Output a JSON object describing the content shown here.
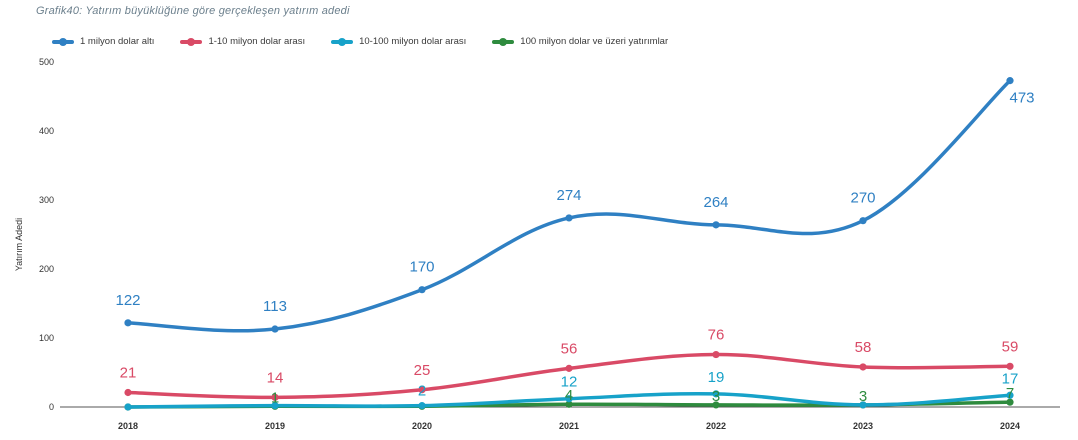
{
  "chart_data": {
    "type": "line",
    "title": "Grafik40: Yatırım büyüklüğüne göre gerçekleşen yatırım adedi",
    "xlabel": "",
    "ylabel": "Yatırım Adedi",
    "x": [
      "2018",
      "2019",
      "2020",
      "2021",
      "2022",
      "2023",
      "2024"
    ],
    "ylim": [
      0,
      500
    ],
    "yticks": [
      0,
      100,
      200,
      300,
      400,
      500
    ],
    "grid": false,
    "legend_position": "top-left",
    "series": [
      {
        "name": "1 milyon dolar altı",
        "color": "#2f80c3",
        "values": [
          122,
          113,
          170,
          274,
          264,
          270,
          473
        ],
        "labels": [
          "122",
          "113",
          "170",
          "274",
          "264",
          "270",
          "473"
        ]
      },
      {
        "name": "1-10 milyon dolar arası",
        "color": "#d94a66",
        "values": [
          21,
          14,
          25,
          56,
          76,
          58,
          59
        ],
        "labels": [
          "21",
          "14",
          "25",
          "56",
          "76",
          "58",
          "59"
        ]
      },
      {
        "name": "10-100 milyon dolar arası",
        "color": "#17a2c9",
        "values": [
          0,
          2,
          2,
          12,
          19,
          3,
          17
        ],
        "labels": [
          "",
          "",
          "2",
          "12",
          "19",
          "",
          "17"
        ]
      },
      {
        "name": "100 milyon dolar ve üzeri yatırımlar",
        "color": "#2e8b3e",
        "values": [
          0,
          1,
          1,
          4,
          3,
          3,
          7
        ],
        "labels": [
          "",
          "1",
          "",
          "4",
          "3",
          "3",
          "7"
        ]
      }
    ]
  }
}
